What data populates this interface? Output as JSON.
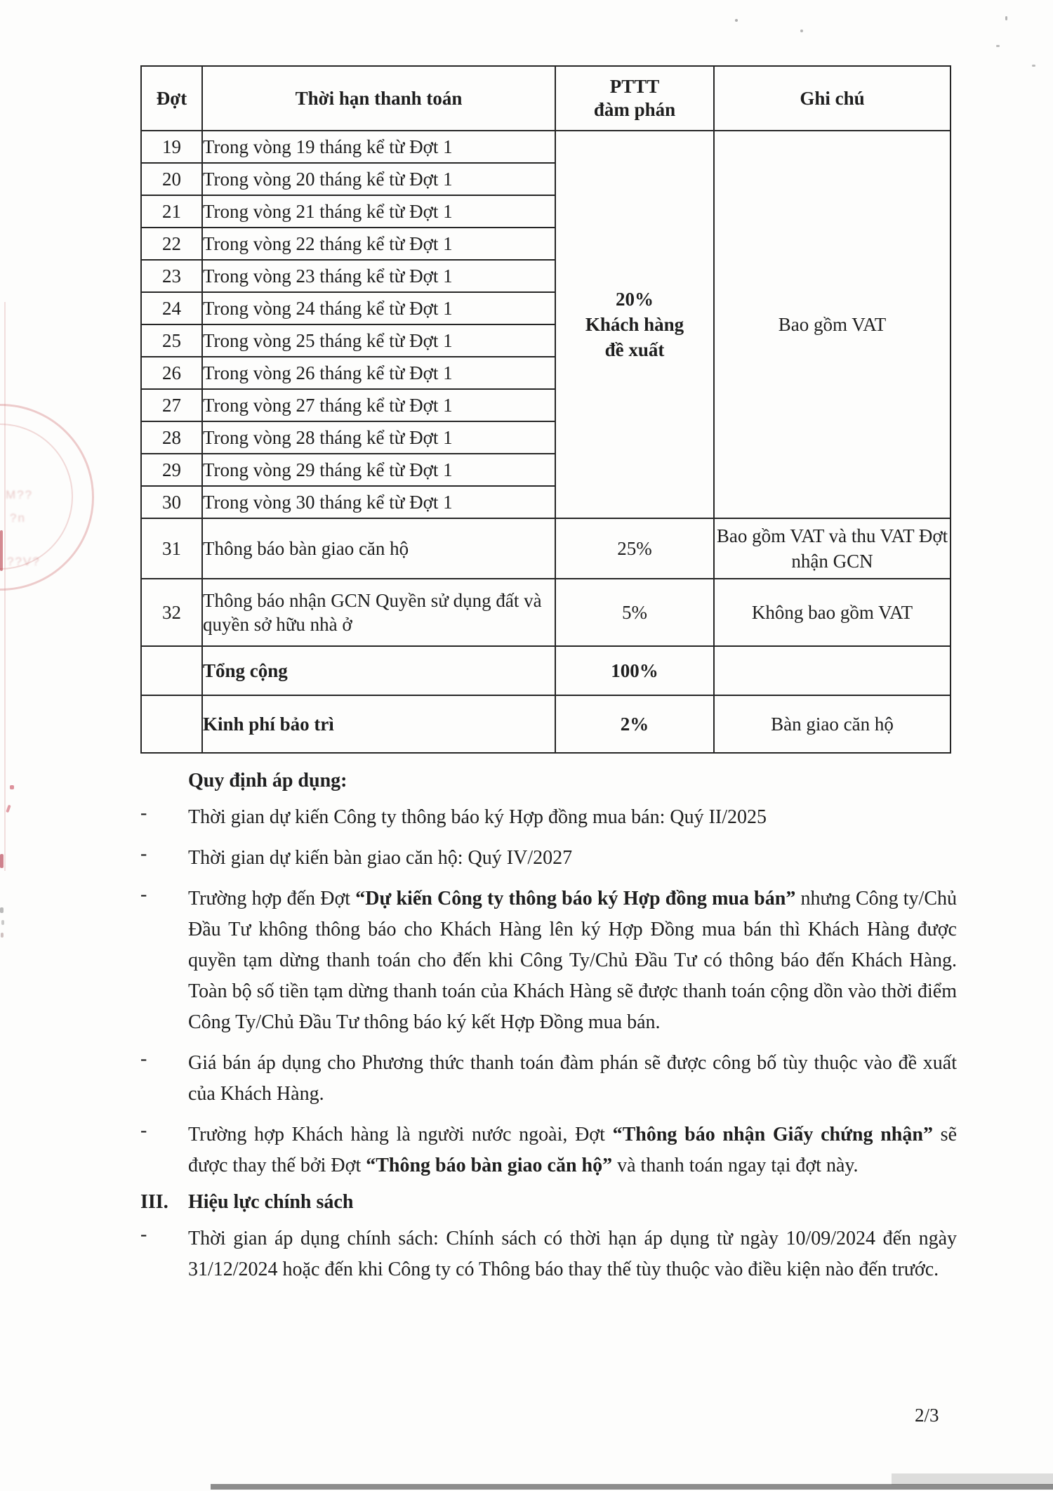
{
  "colors": {
    "ink": "#1e1e1e",
    "table_border": "#262626",
    "stamp_red": "#c44a4a"
  },
  "table": {
    "col_headers": [
      "Đợt",
      "Thời hạn thanh toán",
      "PTTT\nđàm phán",
      "Ghi chú"
    ],
    "installment_rows": [
      {
        "no": "19",
        "term": "Trong vòng 19 tháng kể từ Đợt 1"
      },
      {
        "no": "20",
        "term": "Trong vòng 20 tháng kể từ Đợt 1"
      },
      {
        "no": "21",
        "term": "Trong vòng 21 tháng kể từ Đợt 1"
      },
      {
        "no": "22",
        "term": "Trong vòng 22 tháng kể từ Đợt 1"
      },
      {
        "no": "23",
        "term": "Trong vòng 23 tháng kể từ Đợt 1"
      },
      {
        "no": "24",
        "term": "Trong vòng 24 tháng kể từ Đợt 1"
      },
      {
        "no": "25",
        "term": "Trong vòng 25 tháng kể từ Đợt 1"
      },
      {
        "no": "26",
        "term": "Trong vòng 26 tháng kể từ Đợt 1"
      },
      {
        "no": "27",
        "term": "Trong vòng 27 tháng kể từ Đợt 1"
      },
      {
        "no": "28",
        "term": "Trong vòng 28 tháng kể từ Đợt 1"
      },
      {
        "no": "29",
        "term": "Trong vòng 29 tháng kể từ Đợt 1"
      },
      {
        "no": "30",
        "term": "Trong vòng 30 tháng kể từ Đợt 1"
      }
    ],
    "merged_pttt_lines": [
      "20%",
      "Khách hàng",
      "đề xuất"
    ],
    "merged_note": "Bao gồm VAT",
    "special_rows": [
      {
        "no": "31",
        "term": "Thông báo bàn giao căn hộ",
        "pttt": "25%",
        "note": "Bao gồm VAT và thu VAT Đợt nhận GCN"
      },
      {
        "no": "32",
        "term": "Thông báo nhận GCN Quyền sử dụng đất và quyền sở hữu nhà ở",
        "pttt": "5%",
        "note": "Không bao gồm VAT"
      }
    ],
    "summary_rows": [
      {
        "term": "Tổng cộng",
        "pttt": "100%",
        "note": ""
      },
      {
        "term": "Kinh phí bảo trì",
        "pttt": "2%",
        "note": "Bàn giao căn hộ"
      }
    ]
  },
  "regulations": {
    "heading": "Quy định áp dụng:",
    "bullets": [
      {
        "marker": "-",
        "segments": [
          {
            "text": "Thời gian dự kiến Công ty thông báo ký Hợp đồng mua bán: Quý II/2025",
            "bold": false
          }
        ]
      },
      {
        "marker": "-",
        "segments": [
          {
            "text": "Thời gian dự kiến bàn giao căn hộ: Quý IV/2027",
            "bold": false
          }
        ]
      },
      {
        "marker": "-",
        "segments": [
          {
            "text": "Trường hợp đến Đợt ",
            "bold": false
          },
          {
            "text": "“Dự kiến Công ty thông báo ký Hợp đồng mua bán”",
            "bold": true
          },
          {
            "text": " nhưng Công ty/Chủ Đầu Tư không thông báo cho Khách Hàng lên ký Hợp Đồng mua bán thì Khách Hàng được quyền tạm dừng thanh toán cho đến khi Công Ty/Chủ Đầu Tư có thông báo đến Khách Hàng. Toàn bộ số tiền tạm dừng thanh toán của Khách Hàng sẽ được thanh toán cộng dồn vào thời điểm Công Ty/Chủ Đầu Tư thông báo ký kết Hợp Đồng mua bán.",
            "bold": false
          }
        ]
      },
      {
        "marker": "-",
        "segments": [
          {
            "text": "Giá bán áp dụng cho Phương thức thanh toán đàm phán sẽ được công bố tùy thuộc vào đề xuất của Khách Hàng.",
            "bold": false
          }
        ]
      },
      {
        "marker": "-",
        "segments": [
          {
            "text": "Trường hợp Khách hàng là người nước ngoài, Đợt ",
            "bold": false
          },
          {
            "text": "“Thông báo nhận Giấy chứng nhận”",
            "bold": true
          },
          {
            "text": " sẽ được thay thế bởi Đợt ",
            "bold": false
          },
          {
            "text": "“Thông báo bàn giao căn hộ”",
            "bold": true
          },
          {
            "text": " và thanh toán ngay tại đợt này.",
            "bold": false
          }
        ]
      }
    ]
  },
  "section3": {
    "marker": "III.",
    "heading": "Hiệu lực chính sách",
    "bullets": [
      {
        "marker": "-",
        "segments": [
          {
            "text": "Thời gian áp dụng chính sách: Chính sách có thời hạn áp dụng từ ngày 10/09/2024 đến ngày 31/12/2024 hoặc đến khi Công ty có Thông báo thay thế tùy thuộc vào điều kiện nào đến trước.",
            "bold": false
          }
        ]
      }
    ]
  },
  "page": {
    "number": "2/3"
  }
}
